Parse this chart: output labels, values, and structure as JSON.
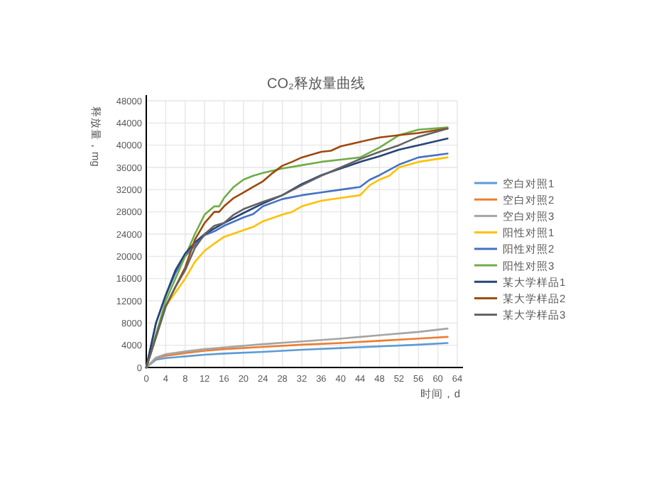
{
  "chart_data": {
    "type": "line",
    "title": "CO₂释放量曲线",
    "xlabel": "时间，d",
    "ylabel": "释放量，mg",
    "xlim": [
      0,
      64
    ],
    "xticks": [
      0,
      4,
      8,
      12,
      16,
      20,
      24,
      28,
      32,
      36,
      40,
      44,
      48,
      52,
      56,
      60,
      64
    ],
    "ylim": [
      0,
      48000
    ],
    "yticks": [
      0,
      4000,
      8000,
      12000,
      16000,
      20000,
      24000,
      28000,
      32000,
      36000,
      40000,
      44000,
      48000
    ],
    "grid": true,
    "legend": "right",
    "marker": "none",
    "line_style": "solid",
    "series": [
      {
        "name": "空白对照1",
        "color": "#5b9bd5",
        "x": [
          0,
          2,
          4,
          8,
          12,
          16,
          24,
          32,
          40,
          48,
          56,
          62
        ],
        "values": [
          0,
          1400,
          1700,
          2000,
          2300,
          2500,
          2800,
          3200,
          3500,
          3800,
          4100,
          4400
        ]
      },
      {
        "name": "空白对照2",
        "color": "#ed7d31",
        "x": [
          0,
          2,
          4,
          8,
          12,
          16,
          24,
          32,
          40,
          48,
          56,
          62
        ],
        "values": [
          0,
          1700,
          2100,
          2600,
          3000,
          3300,
          3700,
          4100,
          4400,
          4800,
          5200,
          5500
        ]
      },
      {
        "name": "空白对照3",
        "color": "#a5a5a5",
        "x": [
          0,
          2,
          4,
          8,
          12,
          16,
          24,
          32,
          40,
          48,
          56,
          62
        ],
        "values": [
          0,
          1800,
          2400,
          2900,
          3300,
          3600,
          4200,
          4700,
          5200,
          5800,
          6400,
          7000
        ]
      },
      {
        "name": "阳性对照1",
        "color": "#ffc000",
        "x": [
          0,
          4,
          6,
          8,
          10,
          12,
          14,
          16,
          20,
          22,
          24,
          28,
          30,
          32,
          36,
          40,
          44,
          46,
          48,
          50,
          52,
          56,
          62
        ],
        "values": [
          0,
          11000,
          13500,
          16000,
          19000,
          21000,
          22300,
          23500,
          24700,
          25300,
          26300,
          27500,
          28000,
          29000,
          30000,
          30500,
          31000,
          32800,
          33800,
          34500,
          36000,
          37000,
          37800
        ]
      },
      {
        "name": "阳性对照2",
        "color": "#4472c4",
        "x": [
          0,
          2,
          4,
          6,
          8,
          10,
          12,
          14,
          16,
          20,
          22,
          24,
          28,
          32,
          36,
          40,
          44,
          46,
          48,
          52,
          56,
          62
        ],
        "values": [
          0,
          8000,
          13000,
          17000,
          20000,
          22000,
          23800,
          24500,
          25500,
          27000,
          27600,
          29000,
          30300,
          31000,
          31500,
          32000,
          32500,
          33800,
          34600,
          36500,
          37800,
          38500
        ]
      },
      {
        "name": "阳性对照3",
        "color": "#70ad47",
        "x": [
          0,
          4,
          6,
          8,
          10,
          12,
          14,
          15,
          16,
          18,
          20,
          22,
          24,
          28,
          32,
          36,
          40,
          44,
          48,
          52,
          56,
          62
        ],
        "values": [
          0,
          12000,
          16000,
          20000,
          24000,
          27500,
          29000,
          29000,
          30500,
          32500,
          33800,
          34500,
          35000,
          35800,
          36400,
          37000,
          37400,
          37800,
          39600,
          41800,
          42800,
          43200
        ]
      },
      {
        "name": "某大学样品1",
        "color": "#264478",
        "x": [
          0,
          2,
          4,
          6,
          8,
          10,
          12,
          14,
          16,
          20,
          24,
          28,
          32,
          36,
          40,
          44,
          48,
          52,
          56,
          62
        ],
        "values": [
          0,
          8000,
          13000,
          17500,
          20500,
          22500,
          24000,
          25000,
          26000,
          27800,
          29500,
          31000,
          33000,
          34600,
          35800,
          37000,
          38000,
          39200,
          40000,
          41200
        ]
      },
      {
        "name": "某大学样品2",
        "color": "#9e480e",
        "x": [
          0,
          4,
          6,
          8,
          10,
          12,
          14,
          15,
          16,
          18,
          20,
          22,
          24,
          26,
          28,
          30,
          32,
          34,
          36,
          38,
          40,
          44,
          48,
          52,
          56,
          62
        ],
        "values": [
          0,
          11000,
          14500,
          18000,
          23000,
          26000,
          28000,
          28000,
          29000,
          30500,
          31500,
          32500,
          33500,
          35000,
          36300,
          37000,
          37800,
          38300,
          38800,
          39000,
          39800,
          40600,
          41400,
          41800,
          42200,
          43000
        ]
      },
      {
        "name": "某大学样品3",
        "color": "#636363",
        "x": [
          0,
          4,
          6,
          8,
          10,
          12,
          14,
          16,
          18,
          20,
          24,
          28,
          32,
          36,
          40,
          44,
          48,
          52,
          56,
          62
        ],
        "values": [
          0,
          11000,
          14500,
          17500,
          21500,
          24000,
          25500,
          26000,
          27500,
          28500,
          29800,
          31000,
          32800,
          34500,
          36000,
          37500,
          38800,
          40000,
          41500,
          43000
        ]
      }
    ]
  }
}
